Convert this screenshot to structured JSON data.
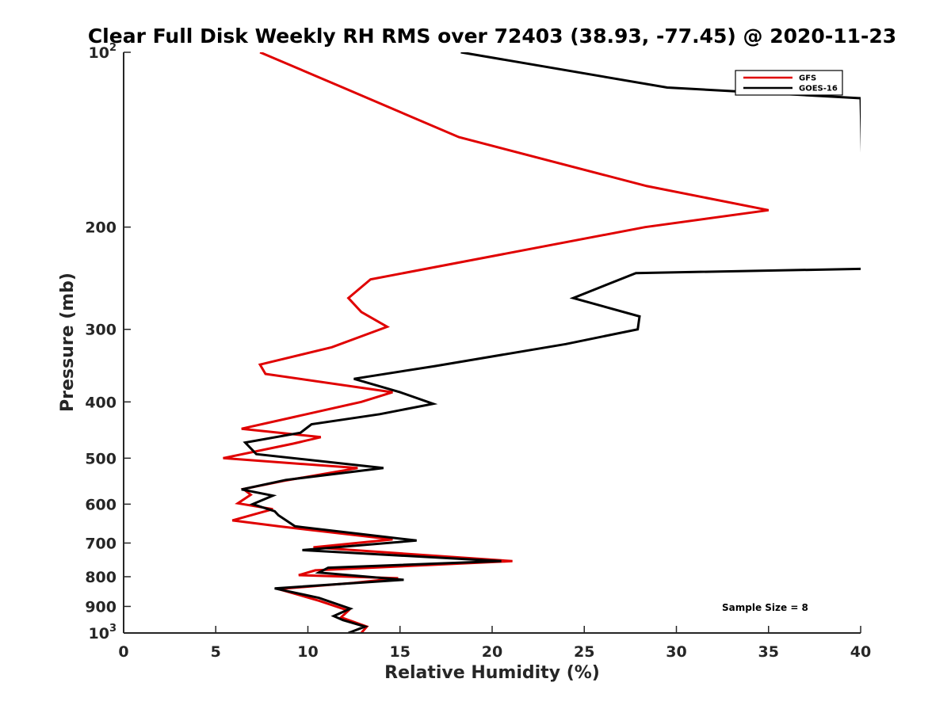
{
  "chart_data": {
    "type": "line",
    "title": "Clear Full Disk Weekly RH RMS over 72403 (38.93, -77.45) @ 2020-11-23",
    "xlabel": "Relative Humidity (%)",
    "ylabel": "Pressure (mb)",
    "xlim": [
      0,
      40
    ],
    "ylim": [
      100,
      1000
    ],
    "y_scale": "log",
    "y_reversed": true,
    "grid": false,
    "legend_position": "top-right",
    "x_ticks": [
      "0",
      "5",
      "10",
      "15",
      "20",
      "25",
      "30",
      "35",
      "40"
    ],
    "x_tick_values": [
      0,
      5,
      10,
      15,
      20,
      25,
      30,
      35,
      40
    ],
    "y_ticks": [
      {
        "value": 100,
        "base": "10",
        "exp": "2"
      },
      {
        "value": 200,
        "label": "200"
      },
      {
        "value": 300,
        "label": "300"
      },
      {
        "value": 400,
        "label": "400"
      },
      {
        "value": 500,
        "label": "500"
      },
      {
        "value": 600,
        "label": "600"
      },
      {
        "value": 700,
        "label": "700"
      },
      {
        "value": 800,
        "label": "800"
      },
      {
        "value": 900,
        "label": "900"
      },
      {
        "value": 1000,
        "base": "10",
        "exp": "3"
      }
    ],
    "annotation": "Sample Size = 8",
    "series": [
      {
        "name": "GFS",
        "color": "#e00000",
        "points": [
          [
            7.4,
            100
          ],
          [
            11.9,
            115
          ],
          [
            18.2,
            140
          ],
          [
            28.4,
            170
          ],
          [
            35.0,
            187
          ],
          [
            28.3,
            200
          ],
          [
            13.4,
            246
          ],
          [
            12.2,
            265
          ],
          [
            12.9,
            280
          ],
          [
            14.3,
            297
          ],
          [
            11.3,
            322
          ],
          [
            7.4,
            345
          ],
          [
            7.7,
            358
          ],
          [
            14.6,
            385
          ],
          [
            12.9,
            400
          ],
          [
            9.2,
            425
          ],
          [
            6.4,
            445
          ],
          [
            10.7,
            460
          ],
          [
            9.2,
            472
          ],
          [
            5.4,
            500
          ],
          [
            12.7,
            520
          ],
          [
            8.7,
            547
          ],
          [
            6.5,
            565
          ],
          [
            6.9,
            578
          ],
          [
            6.2,
            598
          ],
          [
            8.1,
            612
          ],
          [
            5.9,
            640
          ],
          [
            8.4,
            655
          ],
          [
            14.6,
            690
          ],
          [
            10.3,
            712
          ],
          [
            21.1,
            752
          ],
          [
            10.4,
            780
          ],
          [
            9.5,
            795
          ],
          [
            14.9,
            805
          ],
          [
            12.5,
            820
          ],
          [
            8.4,
            840
          ],
          [
            10.6,
            880
          ],
          [
            12.2,
            915
          ],
          [
            11.8,
            940
          ],
          [
            13.2,
            975
          ],
          [
            12.9,
            1000
          ]
        ]
      },
      {
        "name": "GOES-16",
        "color": "#000000",
        "points": [
          [
            18.3,
            100
          ],
          [
            29.5,
            115
          ],
          [
            40.0,
            120
          ],
          [
            40.2,
            236
          ],
          [
            27.8,
            240
          ],
          [
            24.4,
            265
          ],
          [
            28.0,
            285
          ],
          [
            27.9,
            300
          ],
          [
            24.0,
            318
          ],
          [
            16.9,
            347
          ],
          [
            12.5,
            365
          ],
          [
            15.0,
            385
          ],
          [
            16.8,
            403
          ],
          [
            13.9,
            420
          ],
          [
            10.2,
            437
          ],
          [
            9.6,
            452
          ],
          [
            6.6,
            470
          ],
          [
            7.2,
            492
          ],
          [
            14.1,
            520
          ],
          [
            8.8,
            545
          ],
          [
            6.4,
            566
          ],
          [
            8.1,
            580
          ],
          [
            7.0,
            600
          ],
          [
            8.2,
            617
          ],
          [
            8.4,
            627
          ],
          [
            9.3,
            655
          ],
          [
            15.9,
            693
          ],
          [
            9.7,
            720
          ],
          [
            20.5,
            752
          ],
          [
            11.1,
            772
          ],
          [
            10.6,
            787
          ],
          [
            15.2,
            810
          ],
          [
            8.2,
            838
          ],
          [
            10.6,
            870
          ],
          [
            12.3,
            908
          ],
          [
            11.4,
            935
          ],
          [
            11.9,
            950
          ],
          [
            13.1,
            975
          ],
          [
            12.2,
            1000
          ]
        ]
      }
    ]
  }
}
